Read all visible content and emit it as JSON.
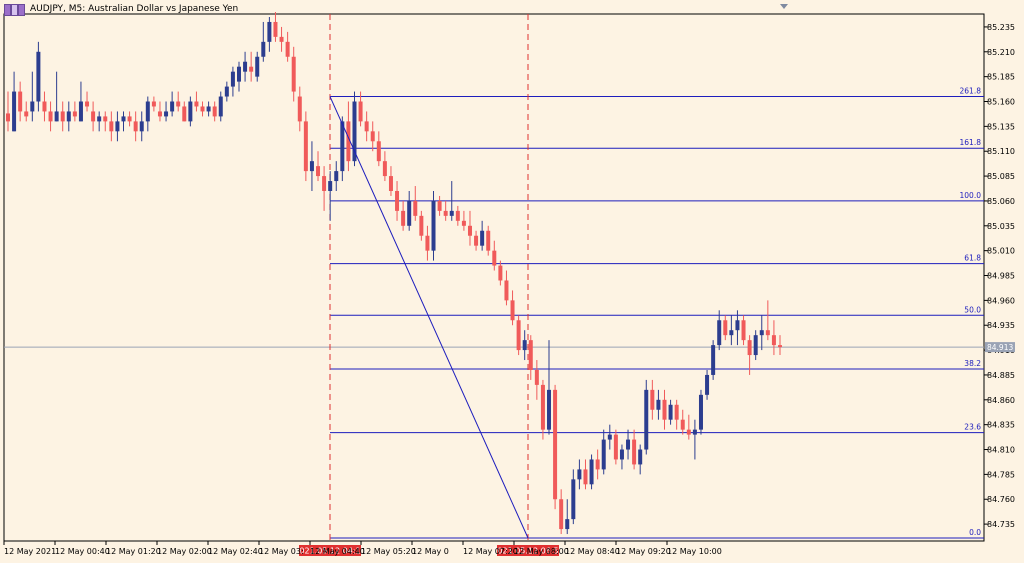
{
  "header": {
    "title": "AUDJPY, M5:  Australian Dollar vs Japanese Yen"
  },
  "colors": {
    "background": "#fdf3e3",
    "bull": "#2c3d8f",
    "bear": "#f05a5a",
    "fib": "#1d1dbd",
    "marker": "#e03030",
    "current": "#9aa3b5"
  },
  "chart_data": {
    "type": "candlestick",
    "symbol": "AUDJPY",
    "timeframe": "M5",
    "ylim": [
      84.718,
      85.248
    ],
    "y_ticks": [
      "85.235",
      "85.210",
      "85.185",
      "85.160",
      "85.135",
      "85.110",
      "85.085",
      "85.060",
      "85.035",
      "85.010",
      "84.985",
      "84.960",
      "84.935",
      "84.910",
      "84.885",
      "84.860",
      "84.835",
      "84.810",
      "84.785",
      "84.760",
      "84.735"
    ],
    "x_ticks": [
      "12 May 2021",
      "12 May 00:40",
      "12 May 01:20",
      "12 May 02:00",
      "12 May 02:40",
      "12 May 03:",
      "12 May 04:40",
      "12 May 05:20",
      "12 May 0",
      "12 May 07:20",
      "12 May 08:00",
      "12 May 08:40",
      "12 May 09:20",
      "12 May 10:00"
    ],
    "time_markers": [
      "2021.05.12 04:15",
      "2021.05.12 06:50"
    ],
    "current_price": "84.913",
    "fib_levels": [
      {
        "label": "261.8",
        "price": 85.165
      },
      {
        "label": "161.8",
        "price": 85.113
      },
      {
        "label": "100.0",
        "price": 85.06
      },
      {
        "label": "61.8",
        "price": 84.997
      },
      {
        "label": "50.0",
        "price": 84.945
      },
      {
        "label": "38.2",
        "price": 84.891
      },
      {
        "label": "23.6",
        "price": 84.827
      },
      {
        "label": "0.0",
        "price": 84.721
      }
    ],
    "trend_line": {
      "from_price": 85.165,
      "to_price": 84.721
    },
    "candles": [
      [
        85.148,
        85.17,
        85.13,
        85.14
      ],
      [
        85.13,
        85.19,
        85.13,
        85.17
      ],
      [
        85.17,
        85.18,
        85.14,
        85.15
      ],
      [
        85.15,
        85.16,
        85.14,
        85.145
      ],
      [
        85.15,
        85.19,
        85.14,
        85.16
      ],
      [
        85.16,
        85.22,
        85.15,
        85.21
      ],
      [
        85.16,
        85.17,
        85.14,
        85.15
      ],
      [
        85.15,
        85.16,
        85.13,
        85.14
      ],
      [
        85.14,
        85.19,
        85.14,
        85.15
      ],
      [
        85.15,
        85.16,
        85.13,
        85.14
      ],
      [
        85.14,
        85.16,
        85.13,
        85.15
      ],
      [
        85.15,
        85.16,
        85.14,
        85.145
      ],
      [
        85.14,
        85.18,
        85.14,
        85.16
      ],
      [
        85.16,
        85.17,
        85.15,
        85.155
      ],
      [
        85.15,
        85.16,
        85.13,
        85.14
      ],
      [
        85.14,
        85.15,
        85.13,
        85.145
      ],
      [
        85.145,
        85.15,
        85.13,
        85.14
      ],
      [
        85.14,
        85.15,
        85.12,
        85.13
      ],
      [
        85.13,
        85.15,
        85.12,
        85.14
      ],
      [
        85.14,
        85.15,
        85.13,
        85.145
      ],
      [
        85.145,
        85.15,
        85.135,
        85.14
      ],
      [
        85.14,
        85.15,
        85.12,
        85.13
      ],
      [
        85.13,
        85.15,
        85.12,
        85.14
      ],
      [
        85.14,
        85.165,
        85.13,
        85.16
      ],
      [
        85.16,
        85.165,
        85.15,
        85.155
      ],
      [
        85.15,
        85.16,
        85.14,
        85.145
      ],
      [
        85.145,
        85.16,
        85.14,
        85.15
      ],
      [
        85.15,
        85.17,
        85.145,
        85.16
      ],
      [
        85.16,
        85.17,
        85.15,
        85.155
      ],
      [
        85.155,
        85.16,
        85.14,
        85.14
      ],
      [
        85.14,
        85.165,
        85.135,
        85.16
      ],
      [
        85.16,
        85.17,
        85.15,
        85.155
      ],
      [
        85.155,
        85.16,
        85.145,
        85.15
      ],
      [
        85.15,
        85.16,
        85.145,
        85.155
      ],
      [
        85.155,
        85.16,
        85.14,
        85.145
      ],
      [
        85.145,
        85.17,
        85.14,
        85.165
      ],
      [
        85.165,
        85.18,
        85.16,
        85.175
      ],
      [
        85.175,
        85.195,
        85.165,
        85.19
      ],
      [
        85.18,
        85.2,
        85.17,
        85.195
      ],
      [
        85.19,
        85.21,
        85.18,
        85.2
      ],
      [
        85.195,
        85.21,
        85.18,
        85.19
      ],
      [
        85.185,
        85.21,
        85.18,
        85.205
      ],
      [
        85.205,
        85.24,
        85.2,
        85.22
      ],
      [
        85.22,
        85.245,
        85.21,
        85.24
      ],
      [
        85.24,
        85.25,
        85.22,
        85.225
      ],
      [
        85.225,
        85.235,
        85.21,
        85.22
      ],
      [
        85.22,
        85.23,
        85.2,
        85.205
      ],
      [
        85.205,
        85.215,
        85.16,
        85.17
      ],
      [
        85.165,
        85.175,
        85.13,
        85.14
      ],
      [
        85.14,
        85.15,
        85.08,
        85.09
      ],
      [
        85.09,
        85.12,
        85.07,
        85.1
      ],
      [
        85.095,
        85.11,
        85.08,
        85.085
      ],
      [
        85.085,
        85.095,
        85.05,
        85.07
      ],
      [
        85.07,
        85.09,
        85.04,
        85.08
      ],
      [
        85.08,
        85.1,
        85.07,
        85.09
      ],
      [
        85.09,
        85.145,
        85.08,
        85.14
      ],
      [
        85.14,
        85.16,
        85.09,
        85.1
      ],
      [
        85.1,
        85.17,
        85.095,
        85.16
      ],
      [
        85.16,
        85.17,
        85.135,
        85.14
      ],
      [
        85.14,
        85.15,
        85.12,
        85.13
      ],
      [
        85.13,
        85.14,
        85.11,
        85.12
      ],
      [
        85.12,
        85.13,
        85.095,
        85.1
      ],
      [
        85.1,
        85.11,
        85.08,
        85.085
      ],
      [
        85.085,
        85.095,
        85.065,
        85.07
      ],
      [
        85.07,
        85.08,
        85.04,
        85.05
      ],
      [
        85.05,
        85.06,
        85.03,
        85.035
      ],
      [
        85.035,
        85.07,
        85.03,
        85.06
      ],
      [
        85.06,
        85.075,
        85.04,
        85.045
      ],
      [
        85.045,
        85.05,
        85.02,
        85.025
      ],
      [
        85.025,
        85.035,
        85.0,
        85.01
      ],
      [
        85.01,
        85.07,
        85.0,
        85.06
      ],
      [
        85.06,
        85.065,
        85.045,
        85.05
      ],
      [
        85.05,
        85.06,
        85.04,
        85.045
      ],
      [
        85.045,
        85.08,
        85.04,
        85.05
      ],
      [
        85.05,
        85.055,
        85.035,
        85.04
      ],
      [
        85.04,
        85.05,
        85.03,
        85.035
      ],
      [
        85.035,
        85.05,
        85.015,
        85.025
      ],
      [
        85.025,
        85.03,
        85.01,
        85.015
      ],
      [
        85.015,
        85.04,
        85.01,
        85.03
      ],
      [
        85.03,
        85.035,
        85.005,
        85.01
      ],
      [
        85.01,
        85.02,
        84.99,
        84.995
      ],
      [
        84.995,
        85.0,
        84.975,
        84.98
      ],
      [
        84.98,
        84.99,
        84.955,
        84.96
      ],
      [
        84.96,
        84.97,
        84.935,
        84.94
      ],
      [
        84.94,
        84.945,
        84.905,
        84.91
      ],
      [
        84.91,
        84.93,
        84.9,
        84.92
      ],
      [
        84.92,
        84.925,
        84.88,
        84.89
      ],
      [
        84.89,
        84.9,
        84.86,
        84.875
      ],
      [
        84.875,
        84.88,
        84.82,
        84.83
      ],
      [
        84.83,
        84.92,
        84.825,
        84.87
      ],
      [
        84.87,
        84.875,
        84.75,
        84.76
      ],
      [
        84.76,
        84.77,
        84.725,
        84.73
      ],
      [
        84.73,
        84.76,
        84.725,
        84.74
      ],
      [
        84.74,
        84.79,
        84.735,
        84.78
      ],
      [
        84.78,
        84.8,
        84.77,
        84.79
      ],
      [
        84.79,
        84.8,
        84.77,
        84.775
      ],
      [
        84.775,
        84.805,
        84.77,
        84.8
      ],
      [
        84.8,
        84.81,
        84.78,
        84.79
      ],
      [
        84.79,
        84.83,
        84.785,
        84.82
      ],
      [
        84.82,
        84.835,
        84.81,
        84.825
      ],
      [
        84.825,
        84.83,
        84.795,
        84.8
      ],
      [
        84.8,
        84.815,
        84.79,
        84.81
      ],
      [
        84.81,
        84.83,
        84.8,
        84.82
      ],
      [
        84.82,
        84.83,
        84.79,
        84.795
      ],
      [
        84.795,
        84.815,
        84.785,
        84.81
      ],
      [
        84.81,
        84.88,
        84.805,
        84.87
      ],
      [
        84.87,
        84.88,
        84.84,
        84.85
      ],
      [
        84.85,
        84.87,
        84.84,
        84.86
      ],
      [
        84.86,
        84.87,
        84.83,
        84.84
      ],
      [
        84.84,
        84.86,
        84.835,
        84.855
      ],
      [
        84.855,
        84.86,
        84.83,
        84.84
      ],
      [
        84.84,
        84.85,
        84.825,
        84.83
      ],
      [
        84.83,
        84.845,
        84.82,
        84.825
      ],
      [
        84.825,
        84.84,
        84.8,
        84.83
      ],
      [
        84.83,
        84.87,
        84.825,
        84.865
      ],
      [
        84.865,
        84.89,
        84.86,
        84.885
      ],
      [
        84.885,
        84.92,
        84.88,
        84.915
      ],
      [
        84.915,
        84.95,
        84.91,
        84.94
      ],
      [
        84.94,
        84.945,
        84.92,
        84.925
      ],
      [
        84.925,
        84.945,
        84.915,
        84.93
      ],
      [
        84.93,
        84.95,
        84.915,
        84.94
      ],
      [
        84.94,
        84.945,
        84.915,
        84.92
      ],
      [
        84.92,
        84.925,
        84.885,
        84.905
      ],
      [
        84.905,
        84.93,
        84.9,
        84.925
      ],
      [
        84.925,
        84.945,
        84.91,
        84.93
      ],
      [
        84.93,
        84.96,
        84.92,
        84.925
      ],
      [
        84.925,
        84.94,
        84.905,
        84.915
      ],
      [
        84.915,
        84.925,
        84.905,
        84.913
      ]
    ]
  }
}
